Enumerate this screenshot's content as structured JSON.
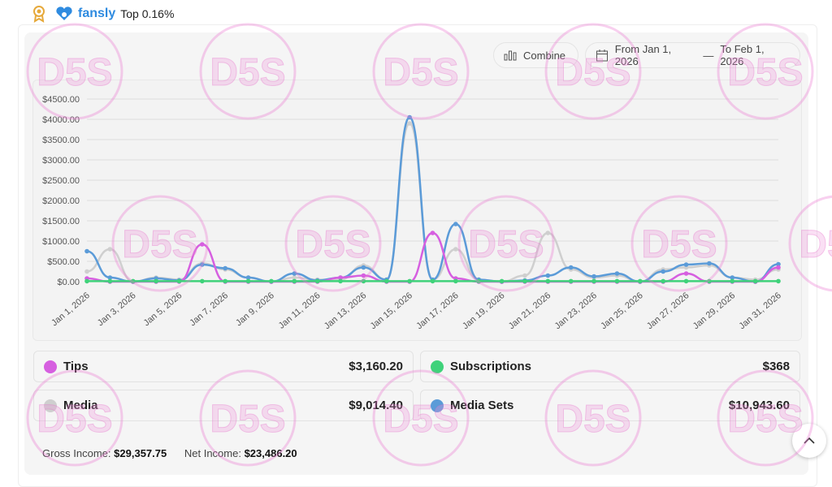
{
  "header": {
    "brand": "fansly",
    "rank": "Top 0.16%"
  },
  "controls": {
    "combine": "Combine",
    "from": "From Jan 1, 2026",
    "separator": "—",
    "to": "To Feb 1, 2026"
  },
  "chart_data": {
    "type": "line",
    "categories": [
      "Jan 1, 2026",
      null,
      "Jan 3, 2026",
      null,
      "Jan 5, 2026",
      null,
      "Jan 7, 2026",
      null,
      "Jan 9, 2026",
      null,
      "Jan 11, 2026",
      null,
      "Jan 13, 2026",
      null,
      "Jan 15, 2026",
      null,
      "Jan 17, 2026",
      null,
      "Jan 19, 2026",
      null,
      "Jan 21, 2026",
      null,
      "Jan 23, 2026",
      null,
      "Jan 25, 2026",
      null,
      "Jan 27, 2026",
      null,
      "Jan 29, 2026",
      null,
      "Jan 31, 2026"
    ],
    "series": [
      {
        "name": "Tips",
        "color": "#d65fe0",
        "values": [
          80,
          0,
          0,
          0,
          0,
          920,
          0,
          0,
          0,
          0,
          0,
          100,
          150,
          0,
          0,
          1200,
          80,
          0,
          0,
          0,
          0,
          0,
          0,
          0,
          0,
          0,
          200,
          0,
          0,
          0,
          350
        ]
      },
      {
        "name": "Subscriptions",
        "color": "#3fd27a",
        "values": [
          12,
          12,
          12,
          12,
          12,
          12,
          12,
          12,
          12,
          12,
          12,
          12,
          12,
          12,
          12,
          12,
          12,
          12,
          12,
          12,
          12,
          12,
          12,
          12,
          12,
          12,
          12,
          12,
          12,
          12,
          12
        ]
      },
      {
        "name": "Media",
        "color": "#cfcfcf",
        "values": [
          250,
          800,
          0,
          100,
          50,
          450,
          300,
          100,
          0,
          100,
          50,
          50,
          400,
          50,
          3900,
          50,
          800,
          50,
          0,
          150,
          1200,
          300,
          100,
          150,
          0,
          300,
          350,
          400,
          100,
          50,
          300
        ]
      },
      {
        "name": "Media Sets",
        "color": "#5b9bd8",
        "values": [
          750,
          100,
          0,
          80,
          30,
          420,
          330,
          100,
          0,
          200,
          30,
          100,
          350,
          50,
          4050,
          50,
          1420,
          50,
          0,
          30,
          150,
          350,
          130,
          200,
          0,
          250,
          420,
          450,
          100,
          0,
          430
        ]
      }
    ],
    "ylim": [
      0,
      4500
    ],
    "yticks": [
      {
        "value": 0,
        "label": "$0.00"
      },
      {
        "value": 500,
        "label": "$500.00"
      },
      {
        "value": 1000,
        "label": "$1000.00"
      },
      {
        "value": 1500,
        "label": "$1500.00"
      },
      {
        "value": 2000,
        "label": "$2000.00"
      },
      {
        "value": 2500,
        "label": "$2500.00"
      },
      {
        "value": 3000,
        "label": "$3000.00"
      },
      {
        "value": 3500,
        "label": "$3500.00"
      },
      {
        "value": 4000,
        "label": "$4000.00"
      },
      {
        "value": 4500,
        "label": "$4500.00"
      }
    ],
    "grid": true
  },
  "totals": [
    "$3,160.20",
    "$368",
    "$9,014.40",
    "$10,943.60"
  ],
  "footer": {
    "gross_label": "Gross Income:",
    "gross": "$29,357.75",
    "net_label": "Net Income:",
    "net": "$23,486.20"
  },
  "watermark": "D5S"
}
